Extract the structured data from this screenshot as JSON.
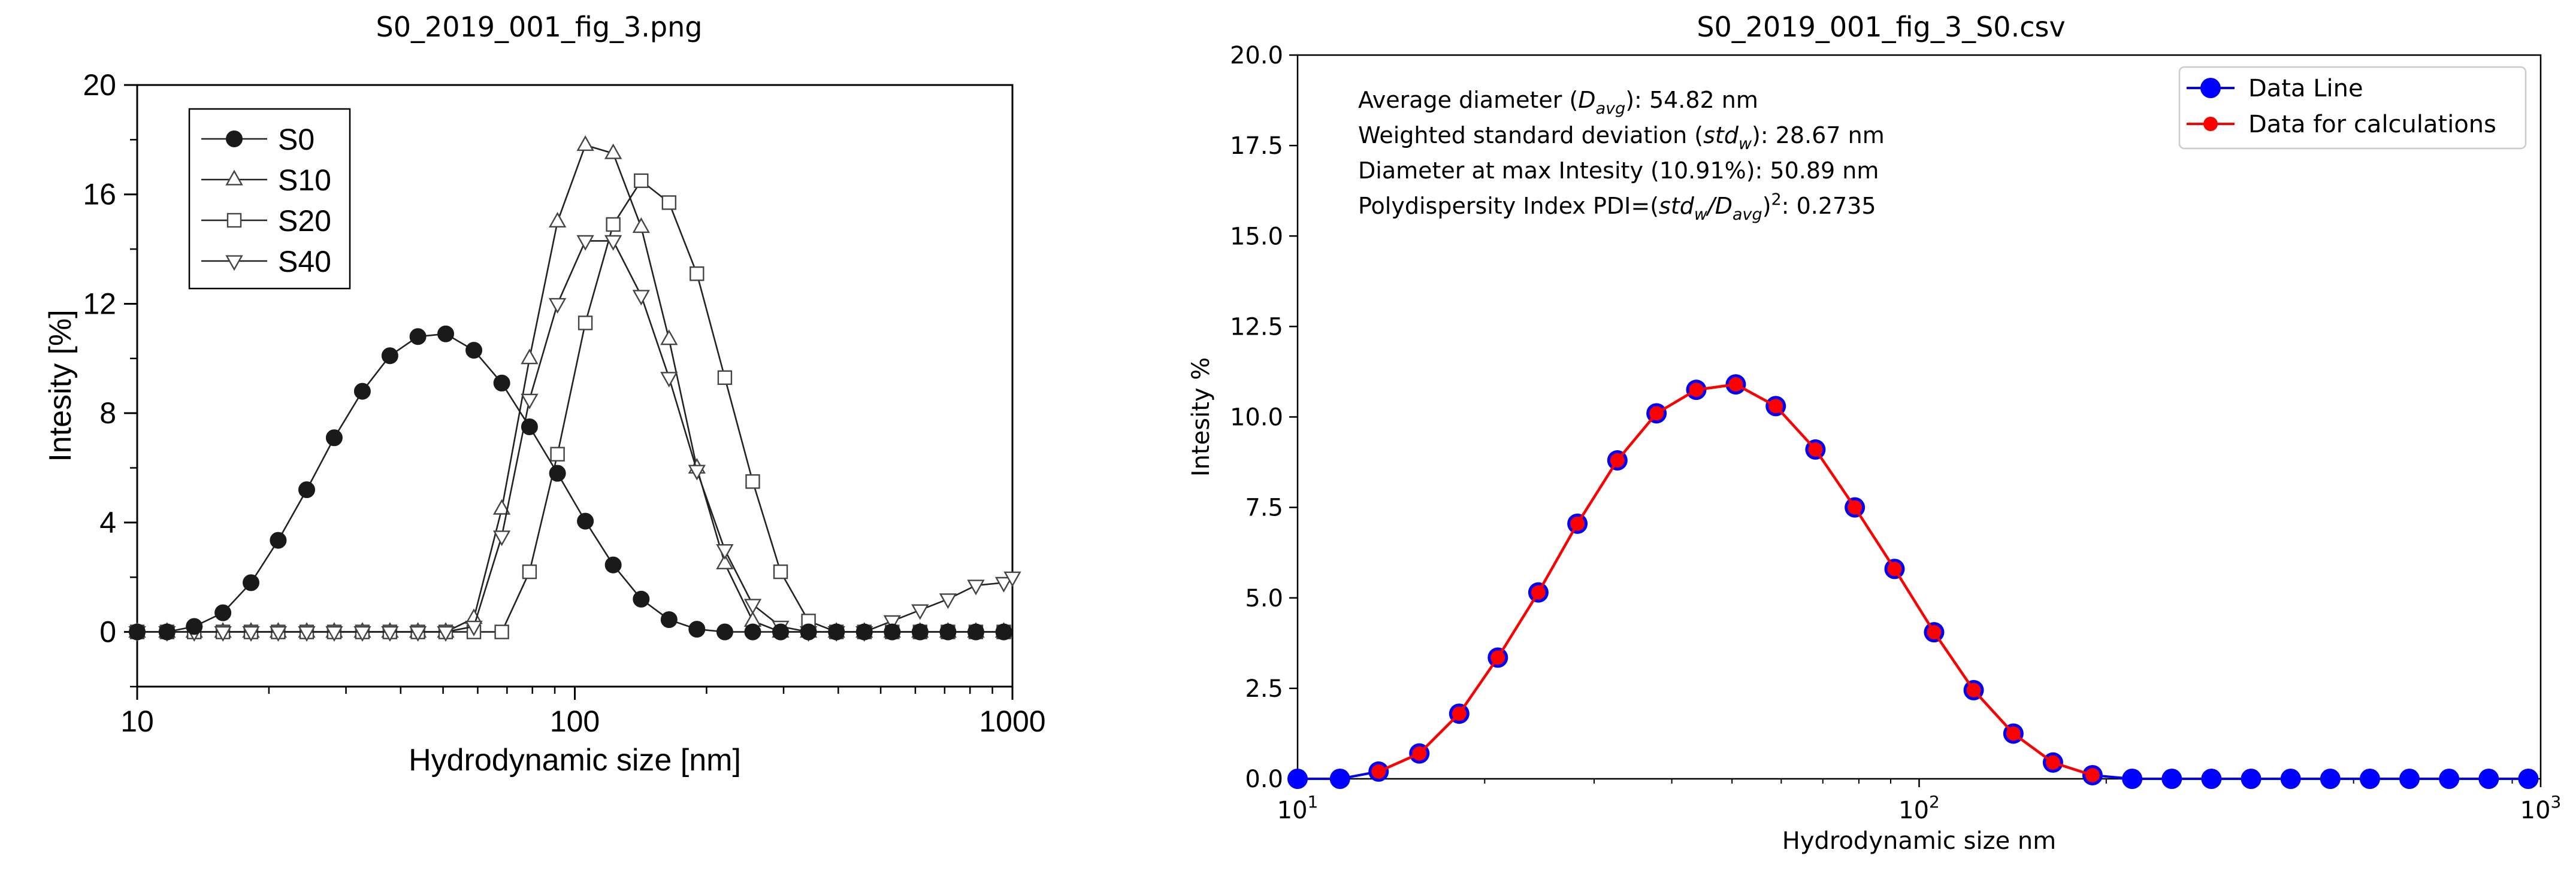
{
  "chart_data": [
    {
      "type": "line",
      "title": "S0_2019_001_fig_3.png",
      "xlabel": "Hydrodynamic size [nm]",
      "ylabel": "Intesity [%]",
      "xscale": "log",
      "xlim": [
        10,
        1000
      ],
      "ylim": [
        -2,
        20
      ],
      "xticks": [
        "10",
        "100",
        "1000"
      ],
      "yticks": [
        "0",
        "4",
        "8",
        "12",
        "16",
        "20"
      ],
      "legend_position": "top-left",
      "series": [
        {
          "name": "S0",
          "marker": "circle-filled",
          "x": [
            10,
            11.7,
            13.5,
            15.7,
            18.2,
            21.0,
            24.4,
            28.2,
            32.7,
            37.8,
            43.8,
            50.7,
            58.8,
            68.1,
            78.8,
            91.3,
            105.7,
            122.4,
            141.8,
            164.2,
            190.1,
            220.2,
            255.0,
            295.3,
            342.0,
            396.1,
            458.7,
            531.2,
            615.1,
            712.4,
            825.0,
            955.4
          ],
          "values": [
            0,
            0,
            0.2,
            0.7,
            1.8,
            3.35,
            5.2,
            7.1,
            8.8,
            10.1,
            10.8,
            10.9,
            10.3,
            9.1,
            7.5,
            5.8,
            4.05,
            2.45,
            1.2,
            0.45,
            0.1,
            0,
            0,
            0,
            0,
            0,
            0,
            0,
            0,
            0,
            0,
            0
          ]
        },
        {
          "name": "S10",
          "marker": "triangle-up-open",
          "x": [
            10,
            11.7,
            13.5,
            15.7,
            18.2,
            21.0,
            24.4,
            28.2,
            32.7,
            37.8,
            43.8,
            50.7,
            58.8,
            68.1,
            78.8,
            91.3,
            105.7,
            122.4,
            141.8,
            164.2,
            190.1,
            220.2,
            255.0,
            295.3,
            342.0,
            396.1,
            458.7,
            531.2,
            615.1,
            712.4,
            825.0,
            955.4
          ],
          "values": [
            0,
            0,
            0,
            0,
            0,
            0,
            0,
            0,
            0,
            0,
            0,
            0,
            0.5,
            4.5,
            10.0,
            15.0,
            17.8,
            17.5,
            14.8,
            10.7,
            6.0,
            2.5,
            0.4,
            0,
            0,
            0,
            0,
            0,
            0,
            0,
            0,
            0
          ]
        },
        {
          "name": "S20",
          "marker": "square-open",
          "x": [
            10,
            11.7,
            13.5,
            15.7,
            18.2,
            21.0,
            24.4,
            28.2,
            32.7,
            37.8,
            43.8,
            50.7,
            58.8,
            68.1,
            78.8,
            91.3,
            105.7,
            122.4,
            141.8,
            164.2,
            190.1,
            220.2,
            255.0,
            295.3,
            342.0,
            396.1,
            458.7,
            531.2,
            615.1,
            712.4,
            825.0,
            955.4
          ],
          "values": [
            0,
            0,
            0,
            0,
            0,
            0,
            0,
            0,
            0,
            0,
            0,
            0,
            0,
            0,
            2.2,
            6.5,
            11.3,
            14.9,
            16.5,
            15.7,
            13.1,
            9.3,
            5.5,
            2.2,
            0.4,
            0,
            0,
            0,
            0,
            0,
            0,
            0
          ]
        },
        {
          "name": "S40",
          "marker": "triangle-down-open",
          "x": [
            10,
            11.7,
            13.5,
            15.7,
            18.2,
            21.0,
            24.4,
            28.2,
            32.7,
            37.8,
            43.8,
            50.7,
            58.8,
            68.1,
            78.8,
            91.3,
            105.7,
            122.4,
            141.8,
            164.2,
            190.1,
            220.2,
            255.0,
            295.3,
            342.0,
            396.1,
            458.7,
            531.2,
            615.1,
            712.4,
            825.0,
            955.4,
            1000
          ],
          "values": [
            0,
            0,
            0,
            0,
            0,
            0,
            0,
            0,
            0,
            0,
            0,
            0,
            0.2,
            3.5,
            8.5,
            12.0,
            14.3,
            14.3,
            12.3,
            9.3,
            5.9,
            3.0,
            1.0,
            0.2,
            0,
            0,
            0,
            0.4,
            0.8,
            1.2,
            1.7,
            1.8,
            2.0
          ]
        }
      ]
    },
    {
      "type": "line",
      "title": "S0_2019_001_fig_3_S0.csv",
      "xlabel": "Hydrodynamic size nm",
      "ylabel": "Intesity %",
      "xscale": "log",
      "xlim": [
        10,
        1000
      ],
      "ylim": [
        0,
        20
      ],
      "xticks": [
        {
          "base": "10",
          "exp": "1"
        },
        {
          "base": "10",
          "exp": "2"
        },
        {
          "base": "10",
          "exp": "3"
        }
      ],
      "yticks": [
        "0.0",
        "2.5",
        "5.0",
        "7.5",
        "10.0",
        "12.5",
        "15.0",
        "17.5",
        "20.0"
      ],
      "legend_position": "top-right",
      "colors": {
        "data_line": "#0000ff",
        "calc": "#ff0000"
      },
      "annotations": [
        [
          {
            "t": "Average diameter ("
          },
          {
            "t": "D",
            "it": true
          },
          {
            "t": "avg",
            "sub": true,
            "it": true
          },
          {
            "t": "): 54.82 nm"
          }
        ],
        [
          {
            "t": "Weighted standard deviation ("
          },
          {
            "t": "std",
            "it": true
          },
          {
            "t": "w",
            "sub": true,
            "it": true
          },
          {
            "t": "): 28.67 nm"
          }
        ],
        [
          {
            "t": "Diameter at max Intesity (10.91%): 50.89 nm"
          }
        ],
        [
          {
            "t": "Polydispersity Index PDI=("
          },
          {
            "t": "std",
            "it": true
          },
          {
            "t": "w",
            "sub": true,
            "it": true
          },
          {
            "t": "/",
            "it": true
          },
          {
            "t": "D",
            "it": true
          },
          {
            "t": "avg",
            "sub": true,
            "it": true
          },
          {
            "t": ")"
          },
          {
            "t": "2",
            "sup": true
          },
          {
            "t": ": 0.2735"
          }
        ]
      ],
      "series": [
        {
          "name": "Data Line",
          "x": [
            10,
            11.7,
            13.5,
            15.7,
            18.2,
            21.0,
            24.4,
            28.2,
            32.7,
            37.8,
            43.8,
            50.7,
            58.8,
            68.1,
            78.8,
            91.3,
            105.7,
            122.4,
            141.8,
            164.2,
            190.1,
            220.2,
            255.0,
            295.3,
            342.0,
            396.1,
            458.7,
            531.2,
            615.1,
            712.4,
            825.0,
            955.4
          ],
          "values": [
            0,
            0,
            0.2,
            0.7,
            1.8,
            3.35,
            5.15,
            7.05,
            8.8,
            10.1,
            10.75,
            10.9,
            10.3,
            9.1,
            7.5,
            5.8,
            4.05,
            2.45,
            1.25,
            0.45,
            0.1,
            0,
            0,
            0,
            0,
            0,
            0,
            0,
            0,
            0,
            0,
            0
          ]
        },
        {
          "name": "Data for calculations",
          "x": [
            13.5,
            15.7,
            18.2,
            21.0,
            24.4,
            28.2,
            32.7,
            37.8,
            43.8,
            50.7,
            58.8,
            68.1,
            78.8,
            91.3,
            105.7,
            122.4,
            141.8,
            164.2,
            190.1
          ],
          "values": [
            0.2,
            0.7,
            1.8,
            3.35,
            5.15,
            7.05,
            8.8,
            10.1,
            10.75,
            10.9,
            10.3,
            9.1,
            7.5,
            5.8,
            4.05,
            2.45,
            1.25,
            0.45,
            0.1
          ]
        }
      ]
    }
  ]
}
